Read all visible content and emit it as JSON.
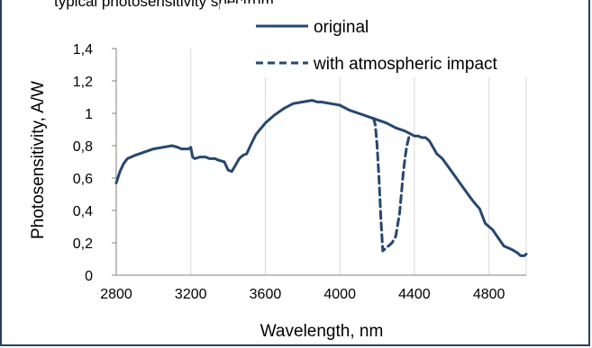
{
  "header": {
    "caption": "typical photosensitivity spectrum"
  },
  "chart_data": {
    "type": "line",
    "xlabel": "Wavelength, nm",
    "ylabel": "Photosensitivity, A/W",
    "xlim": [
      2800,
      5000
    ],
    "ylim": [
      0,
      1.4
    ],
    "x_ticks": [
      "2800",
      "3200",
      "3600",
      "4000",
      "4400",
      "4800"
    ],
    "y_ticks": [
      "0",
      "0,2",
      "0,4",
      "0,6",
      "0,8",
      "1",
      "1,2",
      "1,4"
    ],
    "grid": "vertical",
    "legend_position": "top-right",
    "colors": {
      "series": "#27476f",
      "axis": "#808080",
      "grid": "#d9d9d9"
    },
    "series": [
      {
        "name": "original",
        "style": "solid",
        "x": [
          2800,
          2820,
          2840,
          2860,
          2880,
          2900,
          2950,
          3000,
          3050,
          3100,
          3130,
          3150,
          3170,
          3190,
          3200,
          3210,
          3220,
          3250,
          3280,
          3300,
          3330,
          3350,
          3380,
          3400,
          3420,
          3440,
          3460,
          3480,
          3500,
          3520,
          3550,
          3600,
          3650,
          3700,
          3750,
          3800,
          3850,
          3880,
          3900,
          3950,
          4000,
          4050,
          4100,
          4150,
          4200,
          4250,
          4300,
          4350,
          4400,
          4420,
          4440,
          4460,
          4480,
          4500,
          4520,
          4550,
          4600,
          4650,
          4700,
          4720,
          4750,
          4780,
          4800,
          4820,
          4850,
          4880,
          4900,
          4920,
          4950,
          4970,
          4990,
          5000
        ],
        "y": [
          0.57,
          0.64,
          0.69,
          0.72,
          0.73,
          0.74,
          0.76,
          0.78,
          0.79,
          0.8,
          0.79,
          0.78,
          0.78,
          0.78,
          0.79,
          0.73,
          0.72,
          0.73,
          0.73,
          0.72,
          0.72,
          0.71,
          0.7,
          0.65,
          0.64,
          0.68,
          0.72,
          0.74,
          0.75,
          0.8,
          0.87,
          0.94,
          0.99,
          1.03,
          1.06,
          1.07,
          1.08,
          1.07,
          1.07,
          1.06,
          1.05,
          1.02,
          1.0,
          0.98,
          0.96,
          0.94,
          0.91,
          0.89,
          0.86,
          0.86,
          0.85,
          0.85,
          0.83,
          0.79,
          0.75,
          0.72,
          0.64,
          0.56,
          0.48,
          0.45,
          0.41,
          0.32,
          0.3,
          0.28,
          0.23,
          0.18,
          0.17,
          0.16,
          0.14,
          0.12,
          0.12,
          0.13
        ]
      },
      {
        "name": "with atmospheric impact",
        "style": "dashed",
        "x": [
          4180,
          4190,
          4200,
          4210,
          4220,
          4230,
          4240,
          4260,
          4280,
          4300,
          4320,
          4330,
          4340,
          4350,
          4360,
          4370
        ],
        "y": [
          0.97,
          0.93,
          0.8,
          0.6,
          0.35,
          0.15,
          0.16,
          0.18,
          0.2,
          0.24,
          0.38,
          0.5,
          0.63,
          0.73,
          0.8,
          0.85
        ]
      }
    ]
  }
}
